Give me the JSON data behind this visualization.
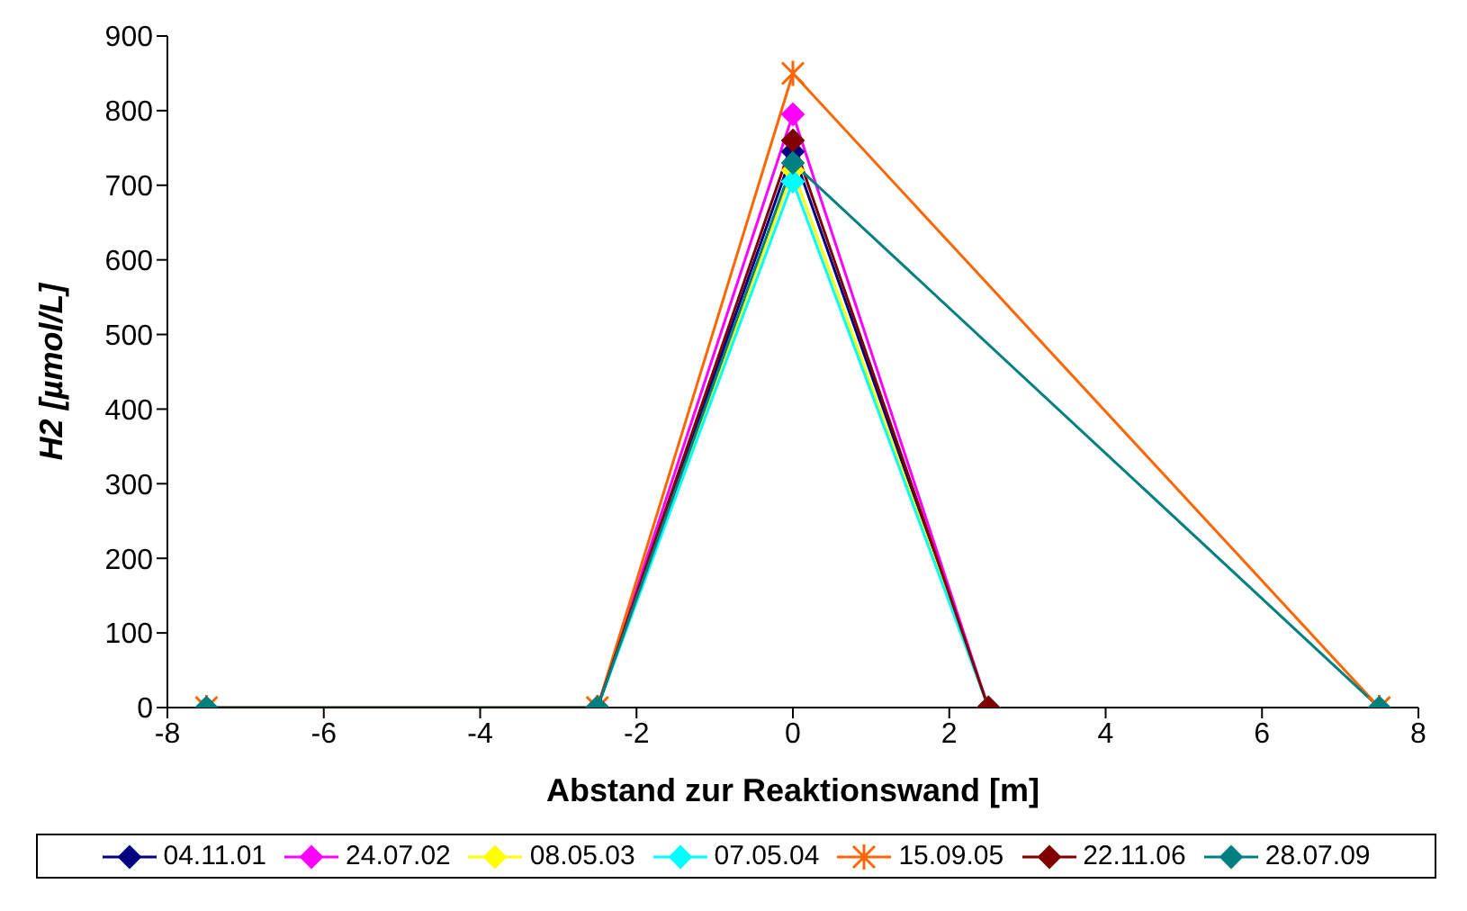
{
  "chart_data": {
    "type": "line",
    "xlabel": "Abstand zur Reaktionswand [m]",
    "ylabel": "H2 [µmol/L]",
    "xlim": [
      -8,
      8
    ],
    "xticks": [
      -8,
      -6,
      -4,
      -2,
      0,
      2,
      4,
      6,
      8
    ],
    "ylim": [
      0,
      900
    ],
    "yticks": [
      0,
      100,
      200,
      300,
      400,
      500,
      600,
      700,
      800,
      900
    ],
    "grid": false,
    "legend": "bottom",
    "line_style": "solid",
    "series": [
      {
        "name": "04.11.01",
        "color": "#000080",
        "marker": "diamond",
        "x": [
          -2.5,
          0,
          2.5
        ],
        "values": [
          0,
          745,
          0
        ]
      },
      {
        "name": "24.07.02",
        "color": "#ff00ff",
        "marker": "diamond",
        "x": [
          -2.5,
          0,
          2.5
        ],
        "values": [
          0,
          795,
          0
        ]
      },
      {
        "name": "08.05.03",
        "color": "#ffff00",
        "marker": "diamond",
        "x": [
          -2.5,
          0,
          2.5
        ],
        "values": [
          0,
          720,
          0
        ]
      },
      {
        "name": "07.05.04",
        "color": "#00ffff",
        "marker": "diamond",
        "x": [
          -2.5,
          0,
          2.5
        ],
        "values": [
          0,
          705,
          0
        ]
      },
      {
        "name": "15.09.05",
        "color": "#ff6600",
        "marker": "cross",
        "x": [
          -7.5,
          -2.5,
          0,
          7.5
        ],
        "values": [
          0,
          0,
          850,
          0
        ]
      },
      {
        "name": "22.11.06",
        "color": "#800000",
        "marker": "diamond",
        "x": [
          -2.5,
          0,
          2.5
        ],
        "values": [
          0,
          760,
          0
        ]
      },
      {
        "name": "28.07.09",
        "color": "#008080",
        "marker": "diamond",
        "x": [
          -7.5,
          -2.5,
          0,
          7.5
        ],
        "values": [
          0,
          0,
          730,
          0
        ]
      }
    ]
  }
}
